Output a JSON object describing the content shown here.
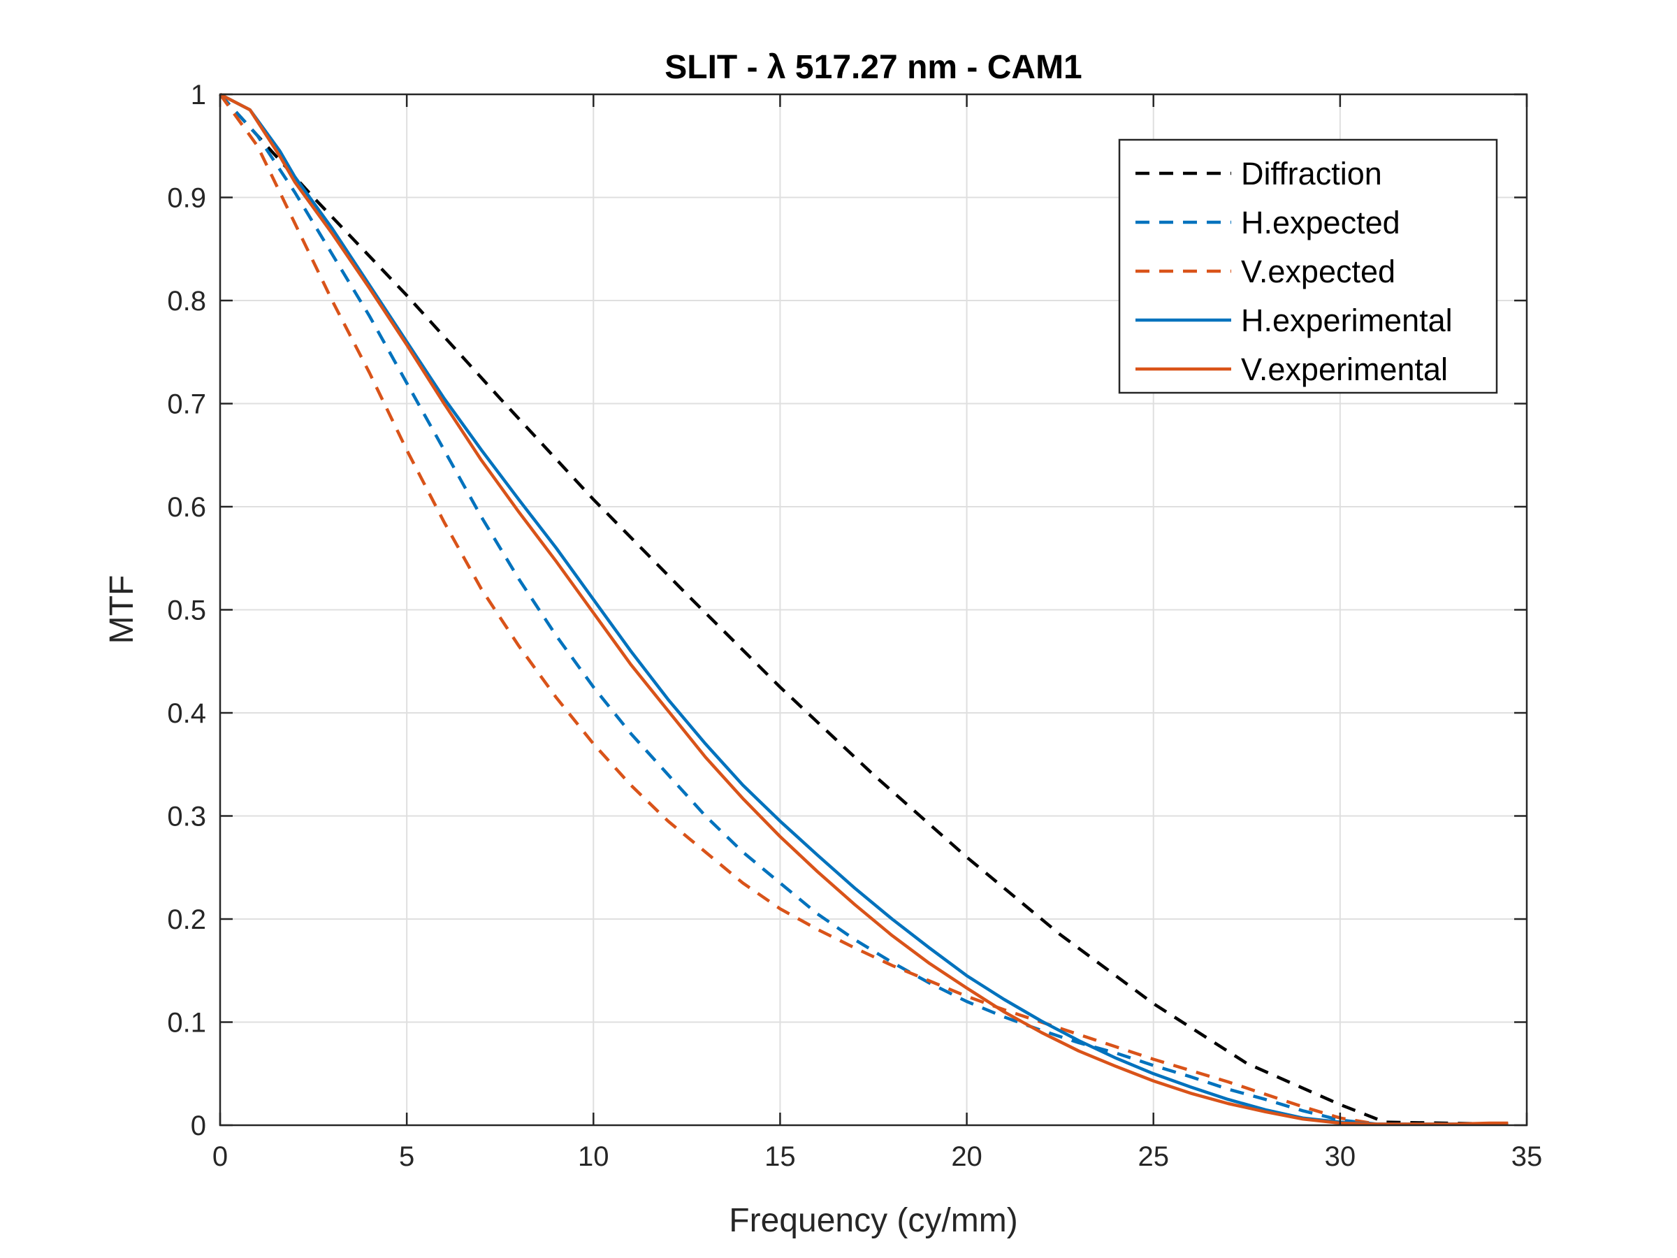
{
  "chart_data": {
    "type": "line",
    "title": "SLIT - λ 517.27 nm - CAM1",
    "xlabel": "Frequency (cy/mm)",
    "ylabel": "MTF",
    "xlim": [
      0,
      35
    ],
    "ylim": [
      0,
      1
    ],
    "xticks": [
      0,
      5,
      10,
      15,
      20,
      25,
      30,
      35
    ],
    "yticks": [
      0,
      0.1,
      0.2,
      0.3,
      0.4,
      0.5,
      0.6,
      0.7,
      0.8,
      0.9,
      1
    ],
    "xtick_labels": [
      "0",
      "5",
      "10",
      "15",
      "20",
      "25",
      "30",
      "35"
    ],
    "ytick_labels": [
      "0",
      "0.1",
      "0.2",
      "0.3",
      "0.4",
      "0.5",
      "0.6",
      "0.7",
      "0.8",
      "0.9",
      "1"
    ],
    "grid": true,
    "legend_position": "top-right",
    "series": [
      {
        "name": "Diffraction",
        "color": "#000000",
        "style": "dashed",
        "x": [
          0,
          2.5,
          5,
          7.5,
          10,
          12.5,
          15,
          17.5,
          20,
          22.5,
          25,
          27.5,
          30,
          31.2,
          34.5
        ],
        "y": [
          1,
          0.9,
          0.805,
          0.705,
          0.607,
          0.515,
          0.425,
          0.34,
          0.26,
          0.185,
          0.118,
          0.06,
          0.02,
          0.003,
          0.001
        ]
      },
      {
        "name": "H.expected",
        "color": "#0072BD",
        "style": "dashed",
        "x": [
          0,
          1,
          2,
          3,
          4,
          5,
          6,
          7,
          8,
          9,
          10,
          11,
          12,
          13,
          14,
          15,
          16,
          17,
          18,
          19,
          20,
          21,
          22,
          23,
          24,
          25,
          26,
          27,
          28,
          29,
          30,
          31,
          32,
          33,
          34,
          34.5
        ],
        "y": [
          1,
          0.96,
          0.905,
          0.845,
          0.785,
          0.72,
          0.655,
          0.59,
          0.53,
          0.475,
          0.425,
          0.38,
          0.34,
          0.3,
          0.265,
          0.235,
          0.205,
          0.18,
          0.158,
          0.138,
          0.12,
          0.105,
          0.092,
          0.08,
          0.07,
          0.058,
          0.047,
          0.035,
          0.025,
          0.014,
          0.005,
          0.001,
          0.001,
          0.001,
          0.001,
          0.001
        ]
      },
      {
        "name": "V.expected",
        "color": "#D95319",
        "style": "dashed",
        "x": [
          0,
          1,
          2,
          3,
          4,
          5,
          6,
          7,
          8,
          9,
          10,
          11,
          12,
          13,
          14,
          15,
          16,
          17,
          18,
          19,
          20,
          21,
          22,
          23,
          24,
          25,
          26,
          27,
          28,
          29,
          30,
          31,
          32,
          33,
          34,
          34.5
        ],
        "y": [
          1,
          0.95,
          0.875,
          0.8,
          0.73,
          0.655,
          0.585,
          0.52,
          0.465,
          0.415,
          0.37,
          0.33,
          0.295,
          0.265,
          0.235,
          0.21,
          0.19,
          0.172,
          0.155,
          0.14,
          0.125,
          0.112,
          0.1,
          0.088,
          0.076,
          0.064,
          0.053,
          0.042,
          0.03,
          0.018,
          0.007,
          0.001,
          0.001,
          0.001,
          0.001,
          0.001
        ]
      },
      {
        "name": "H.experimental",
        "color": "#0072BD",
        "style": "solid",
        "x": [
          0,
          0.8,
          1.6,
          2,
          3,
          4,
          5,
          6,
          7,
          8,
          9,
          10,
          11,
          12,
          13,
          14,
          15,
          16,
          17,
          18,
          19,
          20,
          21,
          22,
          23,
          24,
          25,
          26,
          27,
          28,
          29,
          30,
          31,
          32,
          33,
          34,
          34.5
        ],
        "y": [
          1,
          0.985,
          0.945,
          0.92,
          0.87,
          0.815,
          0.76,
          0.705,
          0.655,
          0.607,
          0.56,
          0.51,
          0.46,
          0.413,
          0.37,
          0.33,
          0.295,
          0.262,
          0.23,
          0.2,
          0.172,
          0.145,
          0.122,
          0.101,
          0.082,
          0.065,
          0.05,
          0.037,
          0.025,
          0.015,
          0.007,
          0.003,
          0.001,
          0.001,
          0.001,
          0.001,
          0.001
        ]
      },
      {
        "name": "V.experimental",
        "color": "#D95319",
        "style": "solid",
        "x": [
          0,
          0.8,
          1.6,
          2,
          3,
          4,
          5,
          6,
          7,
          8,
          9,
          10,
          11,
          12,
          13,
          14,
          15,
          16,
          17,
          18,
          19,
          20,
          21,
          22,
          23,
          24,
          25,
          26,
          27,
          28,
          29,
          30,
          31,
          32,
          33,
          34,
          34.5
        ],
        "y": [
          1,
          0.985,
          0.94,
          0.915,
          0.865,
          0.812,
          0.757,
          0.7,
          0.645,
          0.595,
          0.547,
          0.497,
          0.447,
          0.402,
          0.357,
          0.317,
          0.28,
          0.246,
          0.214,
          0.184,
          0.157,
          0.133,
          0.11,
          0.09,
          0.072,
          0.057,
          0.043,
          0.031,
          0.021,
          0.013,
          0.006,
          0.002,
          0.001,
          0.001,
          0.001,
          0.002,
          0.002
        ]
      }
    ]
  }
}
